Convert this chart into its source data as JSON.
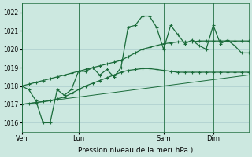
{
  "background_color": "#cce8e0",
  "grid_color": "#aacccc",
  "line_color": "#1a6b3a",
  "xlabel": "Pression niveau de la mer( hPa )",
  "ylim": [
    1015.5,
    1022.5
  ],
  "yticks": [
    1016,
    1017,
    1018,
    1019,
    1020,
    1021,
    1022
  ],
  "xtick_labels": [
    "Ven",
    "Lun",
    "Sam",
    "Dim"
  ],
  "xtick_positions": [
    0,
    8,
    20,
    27
  ],
  "vlines": [
    0,
    8,
    20,
    27
  ],
  "xlim": [
    0,
    32
  ],
  "series1": [
    1018.0,
    1017.8,
    1017.2,
    1016.0,
    1016.0,
    1017.8,
    1017.5,
    1017.8,
    1018.8,
    1018.8,
    1019.0,
    1018.6,
    1018.9,
    1018.5,
    1019.0,
    1021.2,
    1021.3,
    1021.8,
    1021.8,
    1021.2,
    1020.0,
    1021.3,
    1020.8,
    1020.3,
    1020.5,
    1020.2,
    1020.0,
    1021.3,
    1020.3,
    1020.5,
    1020.2,
    1019.8,
    1019.8
  ],
  "series2": [
    1018.0,
    1018.1,
    1018.2,
    1018.3,
    1018.4,
    1018.5,
    1018.6,
    1018.7,
    1018.8,
    1018.9,
    1019.0,
    1019.1,
    1019.2,
    1019.3,
    1019.4,
    1019.6,
    1019.8,
    1020.0,
    1020.1,
    1020.2,
    1020.3,
    1020.35,
    1020.4,
    1020.4,
    1020.4,
    1020.45,
    1020.45,
    1020.45,
    1020.45,
    1020.45,
    1020.45,
    1020.45,
    1020.45
  ],
  "series3": [
    1017.0,
    1017.05,
    1017.1,
    1017.15,
    1017.2,
    1017.3,
    1017.4,
    1017.6,
    1017.8,
    1018.0,
    1018.15,
    1018.3,
    1018.45,
    1018.6,
    1018.75,
    1018.85,
    1018.9,
    1018.95,
    1018.95,
    1018.9,
    1018.85,
    1018.8,
    1018.75,
    1018.75,
    1018.75,
    1018.75,
    1018.75,
    1018.75,
    1018.75,
    1018.75,
    1018.75,
    1018.75,
    1018.75
  ],
  "series4": [
    1017.0,
    1017.05,
    1017.1,
    1017.15,
    1017.2,
    1017.25,
    1017.3,
    1017.35,
    1017.4,
    1017.45,
    1017.5,
    1017.55,
    1017.6,
    1017.65,
    1017.7,
    1017.75,
    1017.8,
    1017.85,
    1017.9,
    1017.95,
    1018.0,
    1018.05,
    1018.1,
    1018.15,
    1018.2,
    1018.25,
    1018.3,
    1018.35,
    1018.4,
    1018.45,
    1018.5,
    1018.55,
    1018.6
  ],
  "marker_size": 2.5,
  "line_width": 0.9
}
